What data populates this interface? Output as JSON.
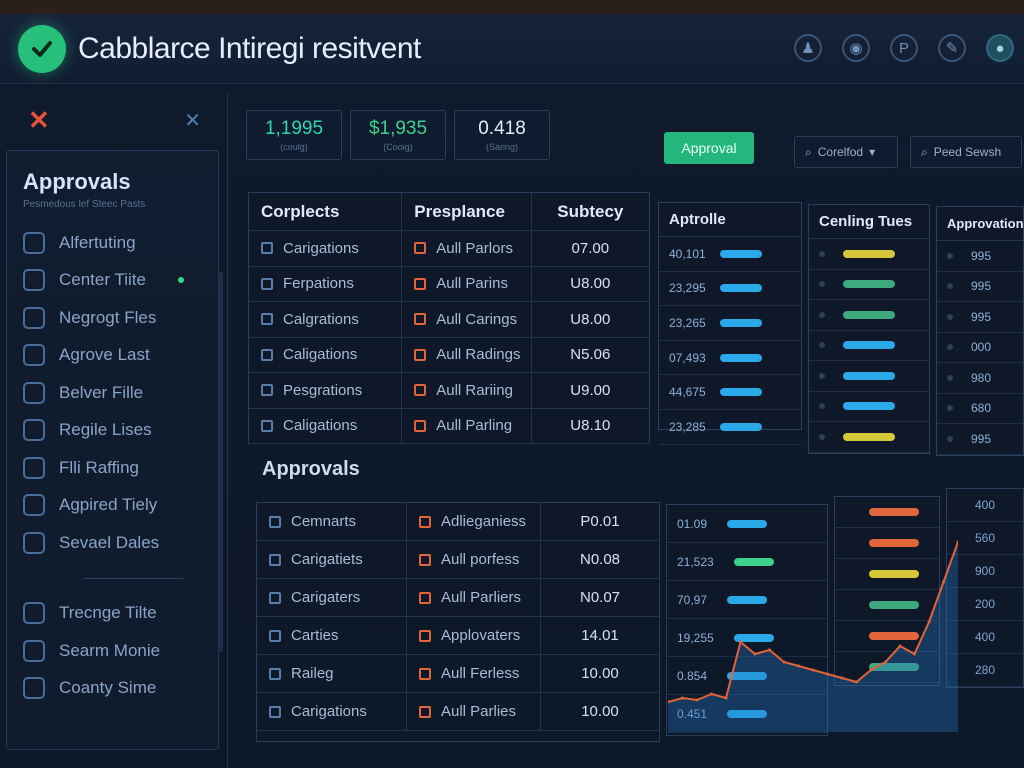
{
  "app": {
    "title": "Cabblarce Intiregi resitvent"
  },
  "header_icons": [
    {
      "name": "user-icon",
      "glyph": "♟"
    },
    {
      "name": "record-icon",
      "glyph": "◉"
    },
    {
      "name": "parking-icon",
      "glyph": "P"
    },
    {
      "name": "tools-icon",
      "glyph": "✎"
    },
    {
      "name": "profile-icon",
      "glyph": "●"
    }
  ],
  "sidebar": {
    "heading": "Approvals",
    "subheading": "Pesmedous lef Steec Pasts",
    "items": [
      {
        "label": "Alfertuting",
        "icon": "grid-icon"
      },
      {
        "label": "Center Tiite",
        "icon": "square-icon"
      },
      {
        "label": "Negrogt Fles",
        "icon": "file-icon"
      },
      {
        "label": "Agrove Last",
        "icon": "square-icon"
      },
      {
        "label": "Belver Fille",
        "icon": "square-icon"
      },
      {
        "label": "Regile Lises",
        "icon": "square-icon"
      },
      {
        "label": "Flli Raffing",
        "icon": "table-icon"
      },
      {
        "label": "Agpired Tiely",
        "icon": "bars-icon"
      },
      {
        "label": "Sevael Dales",
        "icon": "gear-icon"
      },
      {
        "label": "Trecnge Tilte",
        "icon": "shield-icon"
      },
      {
        "label": "Searm Monie",
        "icon": "bird-icon"
      },
      {
        "label": "Coanty Sime",
        "icon": "check-icon"
      }
    ]
  },
  "stats": [
    {
      "value": "1,1995",
      "sub": "(coulg)",
      "color": "#2fd6b0"
    },
    {
      "value": "$1,935",
      "sub": "(Cooig)",
      "color": "#3ed08a"
    },
    {
      "value": "0.418",
      "sub": "(Saring)",
      "color": "#e6eefc"
    }
  ],
  "toolbar": {
    "approval_label": "Approval",
    "filter1_label": "Corelfod",
    "filter2_label": "Peed Sewsh"
  },
  "top_table": {
    "headers": [
      "Corplects",
      "Presplance",
      "Subtecy"
    ],
    "rows": [
      [
        "Carigations",
        "Aull Parlors",
        "07.00"
      ],
      [
        "Ferpations",
        "Aull Parins",
        "U8.00"
      ],
      [
        "Calgrations",
        "Aull Carings",
        "U8.00"
      ],
      [
        "Caligations",
        "Aull Radings",
        "N5.06"
      ],
      [
        "Pesgrations",
        "Aull Rariing",
        "U9.00"
      ],
      [
        "Caligations",
        "Aull Parling",
        "U8.10"
      ]
    ]
  },
  "aptrolle": {
    "header": "Aptrolle",
    "rows": [
      {
        "value": "40,101",
        "color": "#29a9e8"
      },
      {
        "value": "23,295",
        "color": "#29a9e8"
      },
      {
        "value": "23,265",
        "color": "#29a9e8"
      },
      {
        "value": "07,493",
        "color": "#29a9e8"
      },
      {
        "value": "44,675",
        "color": "#29a9e8"
      },
      {
        "value": "23,285",
        "color": "#29a9e8"
      }
    ]
  },
  "counting": {
    "header": "Cenling Tues",
    "bars": [
      "#d7c83a",
      "#3ea87e",
      "#3ea87e",
      "#29a9e8",
      "#29a9e8",
      "#29a9e8",
      "#d7c83a"
    ]
  },
  "approvation": {
    "header": "Approvation",
    "rows": [
      "995",
      "995",
      "995",
      "000",
      "980",
      "680",
      "995"
    ]
  },
  "section": {
    "title": "Approvals"
  },
  "bottom_table": {
    "rows": [
      [
        "Cemnarts",
        "Adlieganiess",
        "P0.01"
      ],
      [
        "Carigatiets",
        "Aull porfess",
        "N0.08"
      ],
      [
        "Carigaters",
        "Aull Parliers",
        "N0.07"
      ],
      [
        "Carties",
        "Applovaters",
        "14.01"
      ],
      [
        "Raileg",
        "Aull Ferless",
        "10.00"
      ],
      [
        "Carigations",
        "Aull Parlies",
        "10.00"
      ]
    ]
  },
  "bottom_values": {
    "rows": [
      {
        "value": "01.09",
        "color": "#29a9e8"
      },
      {
        "value": "21,523",
        "color": "#3ed08a"
      },
      {
        "value": "70,97",
        "color": "#29a9e8"
      },
      {
        "value": "19,255",
        "color": "#29a9e8"
      },
      {
        "value": "0.854",
        "color": "#29a9e8"
      },
      {
        "value": "0.451",
        "color": "#29a9e8"
      }
    ]
  },
  "bottom_bars": [
    "#e2643a",
    "#e2643a",
    "#d7c83a",
    "#3ea87e",
    "#e2643a",
    "#3ea87e"
  ],
  "bottom_right": [
    "400",
    "560",
    "900",
    "200",
    "400",
    "280"
  ],
  "chart_data": {
    "type": "line",
    "x": [
      0,
      1,
      2,
      3,
      4,
      5,
      6,
      7,
      8,
      9,
      10,
      11,
      12,
      13,
      14,
      15,
      16,
      17,
      18,
      19,
      20
    ],
    "series": [
      {
        "values": [
          10,
          12,
          11,
          14,
          12,
          40,
          34,
          36,
          30,
          28,
          26,
          24,
          22,
          20,
          26,
          30,
          38,
          34,
          50,
          70,
          90
        ]
      }
    ]
  }
}
